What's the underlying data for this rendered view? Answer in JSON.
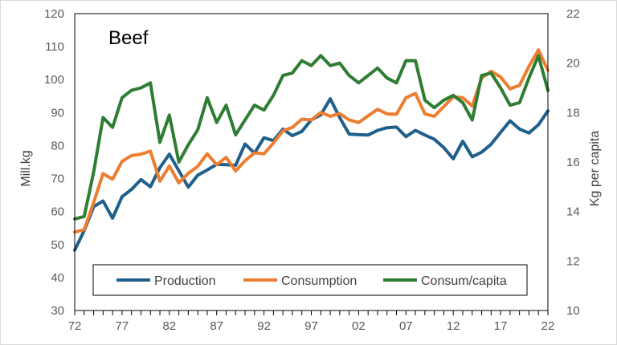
{
  "chart_data": {
    "type": "line",
    "title": "Beef",
    "ylabel": "Mill.kg",
    "y2label": "Kg per capita",
    "xlabel": "",
    "ylim": [
      30,
      120
    ],
    "y2lim": [
      10,
      22
    ],
    "xlim": [
      1972,
      2022
    ],
    "y_ticks": [
      "30",
      "40",
      "50",
      "60",
      "70",
      "80",
      "90",
      "100",
      "110",
      "120"
    ],
    "y2_ticks": [
      "10",
      "12",
      "14",
      "16",
      "18",
      "20",
      "22"
    ],
    "x_tick_labels": [
      "72",
      "77",
      "82",
      "87",
      "92",
      "97",
      "02",
      "07",
      "12",
      "17",
      "22"
    ],
    "legend_position": "bottom",
    "colors": {
      "production": "#1f5f8b",
      "consumption": "#ed7d31",
      "capita": "#2e7d32"
    },
    "series": [
      {
        "name": "Production",
        "axis": "left",
        "color": "#1f5f8b",
        "x": [
          1972,
          1973,
          1974,
          1975,
          1976,
          1977,
          1978,
          1979,
          1980,
          1981,
          1982,
          1983,
          1984,
          1985,
          1986,
          1987,
          1988,
          1989,
          1990,
          1991,
          1992,
          1993,
          1994,
          1995,
          1996,
          1997,
          1998,
          1999,
          2000,
          2001,
          2002,
          2003,
          2004,
          2005,
          2006,
          2007,
          2008,
          2009,
          2010,
          2011,
          2012,
          2013,
          2014,
          2015,
          2016,
          2017,
          2018,
          2019,
          2020,
          2021,
          2022
        ],
        "values": [
          48.3,
          54.2,
          61.5,
          63.2,
          58.0,
          64.5,
          66.7,
          69.7,
          67.5,
          73.3,
          77.4,
          72.4,
          67.4,
          71.0,
          72.6,
          74.3,
          74.2,
          74.0,
          80.5,
          77.7,
          82.4,
          81.5,
          85.0,
          83.0,
          84.3,
          87.8,
          89.3,
          94.2,
          88.5,
          83.5,
          83.3,
          83.2,
          84.6,
          85.4,
          85.6,
          82.7,
          84.6,
          83.2,
          81.9,
          79.4,
          76.0,
          81.3,
          76.6,
          78.0,
          80.4,
          84.0,
          87.5,
          85.0,
          83.8,
          86.3,
          90.5
        ]
      },
      {
        "name": "Consumption",
        "axis": "left",
        "color": "#ed7d31",
        "x": [
          1972,
          1973,
          1974,
          1975,
          1976,
          1977,
          1978,
          1979,
          1980,
          1981,
          1982,
          1983,
          1984,
          1985,
          1986,
          1987,
          1988,
          1989,
          1990,
          1991,
          1992,
          1993,
          1994,
          1995,
          1996,
          1997,
          1998,
          1999,
          2000,
          2001,
          2002,
          2003,
          2004,
          2005,
          2006,
          2007,
          2008,
          2009,
          2010,
          2011,
          2012,
          2013,
          2014,
          2015,
          2016,
          2017,
          2018,
          2019,
          2020,
          2021,
          2022
        ],
        "values": [
          53.8,
          54.5,
          62.8,
          71.5,
          69.8,
          75.2,
          77.0,
          77.4,
          78.3,
          69.2,
          73.8,
          68.7,
          71.6,
          73.7,
          77.5,
          74.2,
          76.4,
          72.3,
          75.4,
          77.8,
          77.5,
          80.8,
          84.5,
          85.5,
          88.0,
          87.8,
          90.0,
          88.9,
          89.7,
          87.8,
          87.0,
          89.0,
          91.0,
          89.6,
          89.5,
          94.5,
          95.8,
          89.6,
          88.9,
          91.8,
          94.8,
          94.5,
          92.0,
          100.5,
          102.5,
          100.8,
          97.2,
          98.3,
          104.0,
          109.0,
          102.8
        ]
      },
      {
        "name": "Consum/capita",
        "axis": "right",
        "color": "#2e7d32",
        "x": [
          1972,
          1973,
          1974,
          1975,
          1976,
          1977,
          1978,
          1979,
          1980,
          1981,
          1982,
          1983,
          1984,
          1985,
          1986,
          1987,
          1988,
          1989,
          1990,
          1991,
          1992,
          1993,
          1994,
          1995,
          1996,
          1997,
          1998,
          1999,
          2000,
          2001,
          2002,
          2003,
          2004,
          2005,
          2006,
          2007,
          2008,
          2009,
          2010,
          2011,
          2012,
          2013,
          2014,
          2015,
          2016,
          2017,
          2018,
          2019,
          2020,
          2021,
          2022
        ],
        "values": [
          13.7,
          13.8,
          15.6,
          17.8,
          17.4,
          18.6,
          18.9,
          19.0,
          19.2,
          16.8,
          17.9,
          16.0,
          16.7,
          17.3,
          18.6,
          17.6,
          18.3,
          17.1,
          17.7,
          18.3,
          18.1,
          18.7,
          19.5,
          19.6,
          20.1,
          19.9,
          20.3,
          19.9,
          20.0,
          19.5,
          19.2,
          19.5,
          19.8,
          19.4,
          19.2,
          20.1,
          20.1,
          18.5,
          18.2,
          18.5,
          18.7,
          18.4,
          17.7,
          19.5,
          19.6,
          19.0,
          18.3,
          18.4,
          19.4,
          20.3,
          18.9
        ]
      }
    ]
  }
}
